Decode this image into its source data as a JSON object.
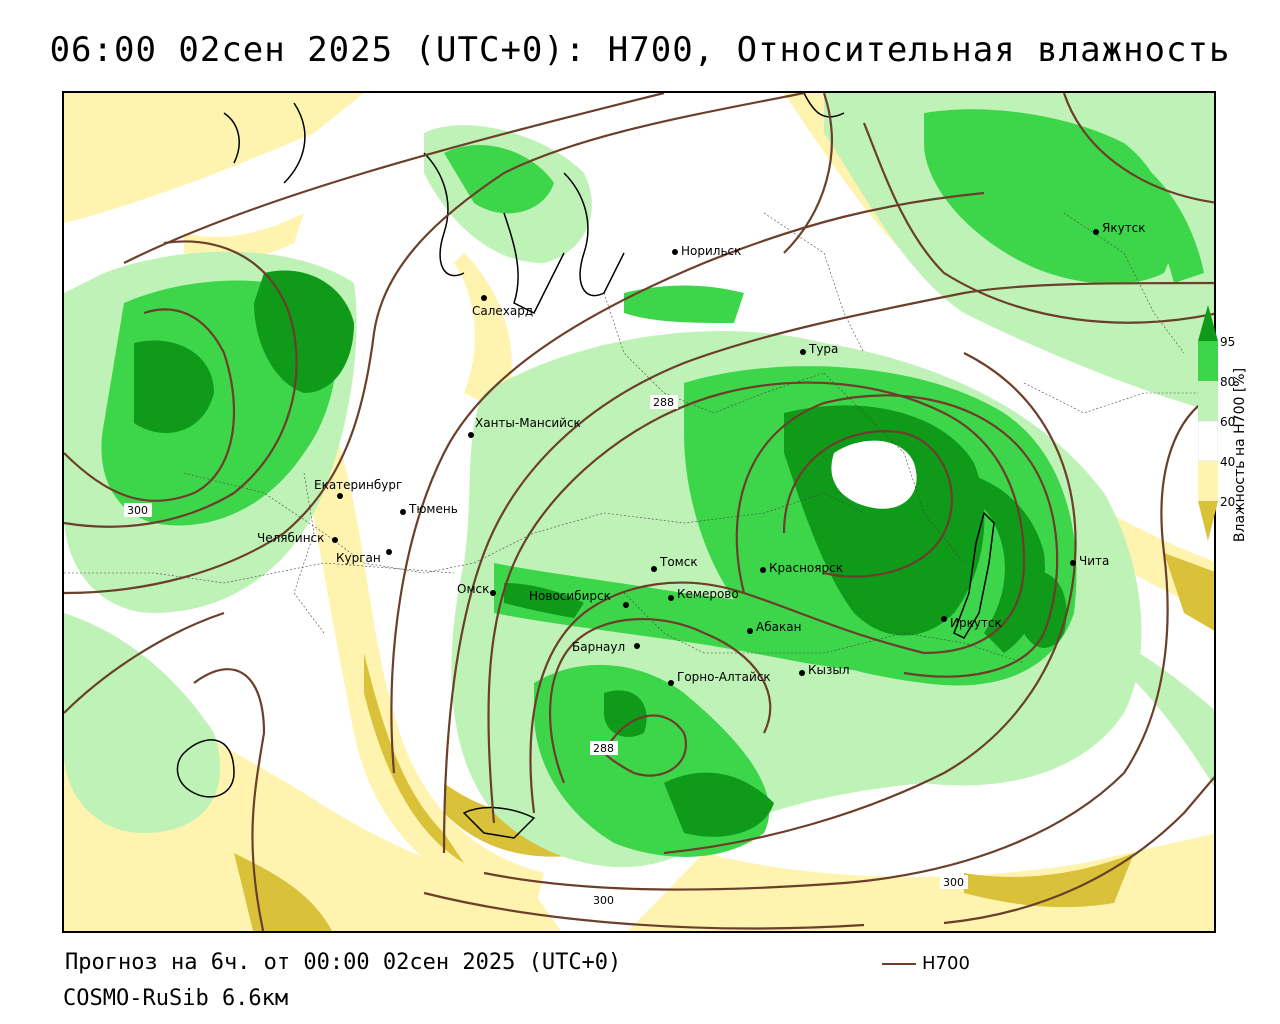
{
  "header": {
    "title": "06:00 02сен 2025 (UTC+0): H700, Относительная влажность"
  },
  "colors": {
    "humidity_95": "#0f9a1a",
    "humidity_80": "#3dd64b",
    "humidity_60": "#bff2b6",
    "humidity_40": "#ffffff",
    "humidity_20": "#fff3b0",
    "humidity_dry": "#d9c23a",
    "contour": "#6b3f2a"
  },
  "map": {
    "cities": [
      {
        "name": "Якутск"
      },
      {
        "name": "Норильск"
      },
      {
        "name": "Салехард"
      },
      {
        "name": "Тура"
      },
      {
        "name": "Ханты-Мансийск"
      },
      {
        "name": "Екатеринбург"
      },
      {
        "name": "Тюмень"
      },
      {
        "name": "Челябинск"
      },
      {
        "name": "Курган"
      },
      {
        "name": "Омск"
      },
      {
        "name": "Новосибирск"
      },
      {
        "name": "Томск"
      },
      {
        "name": "Кемерово"
      },
      {
        "name": "Красноярск"
      },
      {
        "name": "Абакан"
      },
      {
        "name": "Иркутск"
      },
      {
        "name": "Чита"
      },
      {
        "name": "Барнаул"
      },
      {
        "name": "Горно-Алтайск"
      },
      {
        "name": "Кызыл"
      }
    ],
    "contour_labels": [
      "288",
      "300",
      "288",
      "300",
      "300"
    ]
  },
  "legend": {
    "ticks": [
      "95",
      "80",
      "60",
      "40",
      "20"
    ],
    "caption": "Влажность на H700 [%]"
  },
  "footer": {
    "forecast": "Прогноз на 6ч. от 00:00 02сен 2025 (UTC+0)",
    "model": "COSMO-RuSib 6.6км",
    "line_legend": "H700"
  }
}
